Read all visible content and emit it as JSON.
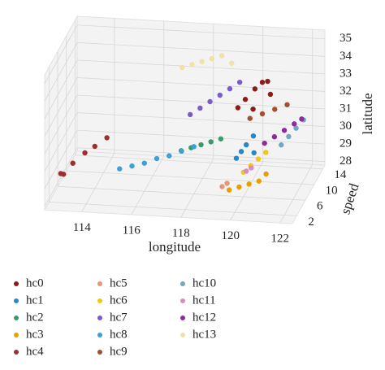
{
  "chart_data": {
    "type": "scatter3d",
    "x_label": "longitude",
    "y_label": "latitude",
    "z_label": "speed",
    "xlim": [
      112.5,
      122.5
    ],
    "ylim": [
      27.8,
      35.5
    ],
    "zlim": [
      0,
      15
    ],
    "xticks": [
      114,
      116,
      118,
      120,
      122
    ],
    "yticks": [
      28,
      29,
      30,
      31,
      32,
      33,
      34,
      35
    ],
    "zticks": [
      2,
      6,
      10,
      14
    ],
    "grid": true,
    "series": [
      {
        "name": "hc0",
        "color": "#8b1c1c",
        "x": [
          119.6,
          119.9,
          120.2,
          120.5,
          120.8,
          121.0,
          120.3
        ],
        "y": [
          32.4,
          32.9,
          33.3,
          33.7,
          34.0,
          33.5,
          32.6
        ],
        "z": [
          8,
          8,
          9,
          9,
          8,
          7,
          7
        ]
      },
      {
        "name": "hc1",
        "color": "#2b86c4",
        "x": [
          119.8,
          120.0,
          120.2,
          120.4,
          120.6
        ],
        "y": [
          30.2,
          30.6,
          31.0,
          31.3,
          30.8
        ],
        "z": [
          5,
          5,
          5,
          6,
          4
        ]
      },
      {
        "name": "hc2",
        "color": "#3a9a6a",
        "x": [
          117.4,
          117.8,
          118.2,
          118.6,
          119.0
        ],
        "y": [
          30.0,
          30.2,
          30.4,
          30.6,
          30.8
        ],
        "z": [
          7,
          7,
          7,
          7,
          7
        ]
      },
      {
        "name": "hc3",
        "color": "#e6a100",
        "x": [
          119.6,
          120.0,
          120.4,
          120.8,
          121.0
        ],
        "y": [
          28.6,
          28.8,
          29.0,
          29.2,
          29.4
        ],
        "z": [
          4,
          4,
          4,
          4,
          5
        ]
      },
      {
        "name": "hc4",
        "color": "#9c2f2f",
        "x": [
          112.8,
          113.0,
          113.2,
          113.6,
          114.0,
          114.4
        ],
        "y": [
          29.0,
          29.2,
          29.4,
          29.8,
          30.2,
          30.5
        ],
        "z": [
          4,
          3,
          5,
          6,
          6,
          7
        ]
      },
      {
        "name": "hc5",
        "color": "#e8967a",
        "x": [
          119.4,
          119.6
        ],
        "y": [
          29.0,
          29.2
        ],
        "z": [
          3,
          3
        ]
      },
      {
        "name": "hc6",
        "color": "#f2c811",
        "x": [
          120.0,
          120.3,
          120.6,
          120.9
        ],
        "y": [
          29.2,
          29.6,
          30.0,
          30.4
        ],
        "z": [
          6,
          6,
          6,
          6
        ]
      },
      {
        "name": "hc7",
        "color": "#7a5cc9",
        "x": [
          117.5,
          117.9,
          118.3,
          118.7,
          119.1,
          119.5
        ],
        "y": [
          31.4,
          31.8,
          32.2,
          32.6,
          33.0,
          33.4
        ],
        "z": [
          10,
          10,
          10,
          10,
          10,
          10
        ]
      },
      {
        "name": "hc8",
        "color": "#3fa0d8",
        "x": [
          115.0,
          115.5,
          116.0,
          116.5,
          117.0,
          117.5,
          118.0
        ],
        "y": [
          29.0,
          29.2,
          29.4,
          29.7,
          29.9,
          30.2,
          30.5
        ],
        "z": [
          6,
          6,
          6,
          6,
          6,
          6,
          6
        ]
      },
      {
        "name": "hc9",
        "color": "#a0522d",
        "x": [
          120.0,
          120.5,
          121.0,
          121.5
        ],
        "y": [
          31.6,
          31.9,
          32.2,
          32.5
        ],
        "z": [
          9,
          9,
          9,
          9
        ]
      },
      {
        "name": "hc10",
        "color": "#6fa8c0",
        "x": [
          121.0,
          121.3,
          121.6,
          121.9
        ],
        "y": [
          29.5,
          30.0,
          30.5,
          31.0
        ],
        "z": [
          12,
          12,
          12,
          12
        ]
      },
      {
        "name": "hc11",
        "color": "#d98cc0",
        "x": [
          120.2,
          120.4
        ],
        "y": [
          29.5,
          29.7
        ],
        "z": [
          5,
          5
        ]
      },
      {
        "name": "hc12",
        "color": "#8e2c9e",
        "x": [
          120.5,
          120.9,
          121.3,
          121.7,
          122.0
        ],
        "y": [
          30.0,
          30.4,
          30.8,
          31.2,
          31.5
        ],
        "z": [
          10,
          10,
          10,
          10,
          10
        ]
      },
      {
        "name": "hc13",
        "color": "#f0e2a6",
        "x": [
          117.0,
          117.4,
          117.8,
          118.2,
          118.6,
          119.0
        ],
        "y": [
          33.6,
          33.8,
          34.0,
          34.2,
          34.4,
          34.0
        ],
        "z": [
          12,
          12,
          12,
          12,
          12,
          12
        ]
      }
    ]
  }
}
